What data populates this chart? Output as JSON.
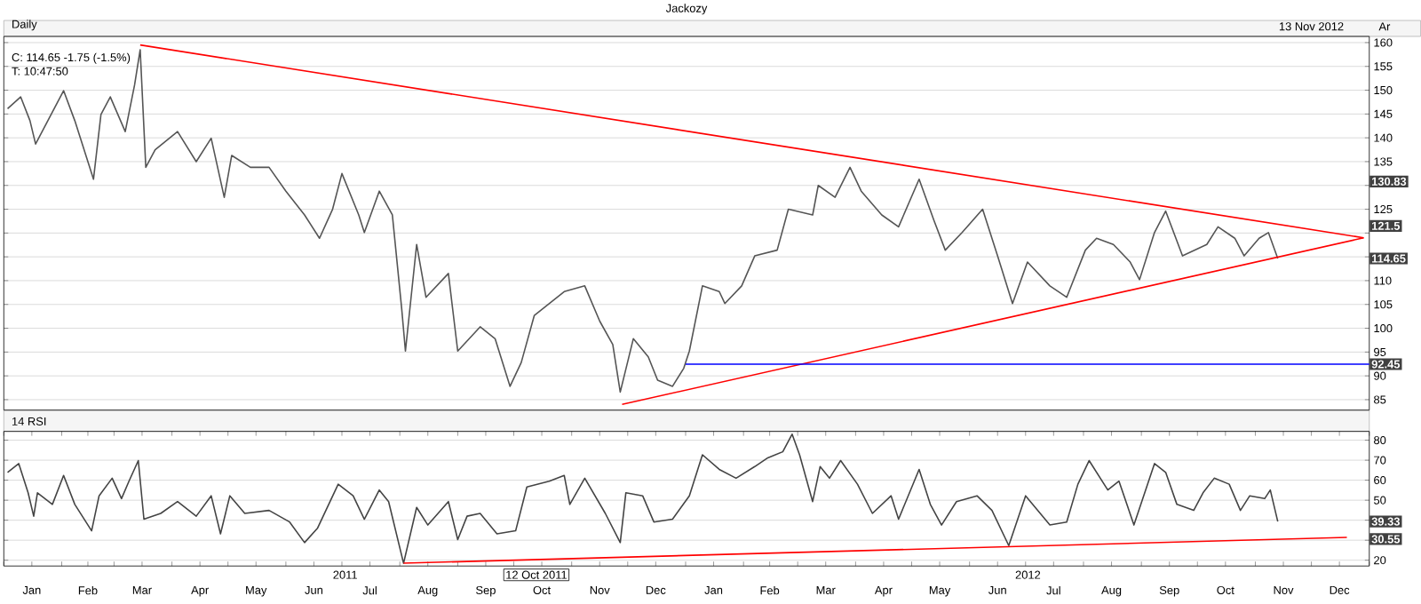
{
  "chart_data": [
    {
      "type": "line",
      "title": "Jackozy",
      "subtitle": "Daily",
      "xlim": [
        "2011-01-01",
        "2013-01-01"
      ],
      "ylim": [
        82.8,
        161.3
      ],
      "yticks": [
        85,
        90,
        95,
        100,
        105,
        110,
        {
          "value": 115,
          "label": null
        },
        {
          "value": 120,
          "label": null
        },
        125,
        {
          "value": 130,
          "label": null
        },
        135,
        140,
        145,
        150,
        155,
        160
      ],
      "grid": "y",
      "tick_labels": "y",
      "series": [
        {
          "color": "#555555",
          "x": [
            "2011-01-03",
            "2011-01-10",
            "2011-01-15",
            "2011-01-18",
            "2011-02-02",
            "2011-02-08",
            "2011-02-18",
            "2011-02-22",
            "2011-02-27",
            "2011-03-07",
            "2011-03-12",
            "2011-03-15",
            "2011-03-18",
            "2011-03-23",
            "2011-04-04",
            "2011-04-14",
            "2011-04-22",
            "2011-04-29",
            "2011-05-03",
            "2011-05-13",
            "2011-05-23",
            "2011-06-01",
            "2011-06-11",
            "2011-06-19",
            "2011-06-26",
            "2011-07-01",
            "2011-07-10",
            "2011-07-13",
            "2011-07-21",
            "2011-07-28",
            "2011-08-02",
            "2011-08-04",
            "2011-08-10",
            "2011-08-15",
            "2011-08-27",
            "2011-09-01",
            "2011-09-13",
            "2011-09-21",
            "2011-09-29",
            "2011-10-05",
            "2011-10-12",
            "2011-10-28",
            "2011-11-08",
            "2011-11-16",
            "2011-11-23",
            "2011-11-27",
            "2011-12-04",
            "2011-12-12",
            "2011-12-17",
            "2011-12-25",
            "2011-12-31",
            "2012-01-03",
            "2012-01-10",
            "2012-01-19",
            "2012-01-22",
            "2012-01-31",
            "2012-02-07",
            "2012-02-19",
            "2012-02-25",
            "2012-03-09",
            "2012-03-12",
            "2012-03-21",
            "2012-03-29",
            "2012-04-04",
            "2012-04-15",
            "2012-04-24",
            "2012-05-05",
            "2012-05-13",
            "2012-05-19",
            "2012-05-28",
            "2012-06-08",
            "2012-06-16",
            "2012-06-24",
            "2012-07-02",
            "2012-07-14",
            "2012-07-23",
            "2012-08-02",
            "2012-08-08",
            "2012-08-17",
            "2012-08-26",
            "2012-08-31",
            "2012-09-08",
            "2012-09-14",
            "2012-09-23",
            "2012-10-06",
            "2012-10-12",
            "2012-10-21",
            "2012-10-26",
            "2012-11-03",
            "2012-11-08",
            "2012-11-13"
          ],
          "values": [
            146.1,
            148.6,
            143.6,
            138.7,
            149.9,
            143.6,
            131.3,
            144.9,
            148.6,
            141.3,
            151.1,
            158.5,
            133.8,
            137.5,
            141.3,
            135,
            139.9,
            127.5,
            136.3,
            133.8,
            133.8,
            128.8,
            123.8,
            118.9,
            125,
            132.5,
            123.8,
            120.1,
            128.8,
            123.8,
            104.1,
            95.2,
            117.6,
            106.5,
            111.5,
            95.2,
            100.3,
            97.8,
            87.8,
            92.8,
            102.7,
            107.7,
            108.9,
            101.5,
            96.6,
            86.6,
            97.8,
            94,
            89.1,
            87.8,
            91.6,
            95.2,
            108.9,
            107.7,
            105.2,
            108.9,
            115.2,
            116.4,
            125,
            123.8,
            130,
            127.5,
            133.8,
            128.8,
            123.8,
            121.3,
            131.3,
            122.6,
            116.4,
            120.1,
            125,
            115.2,
            105.2,
            113.9,
            108.9,
            106.5,
            116.4,
            118.9,
            117.6,
            113.9,
            110.2,
            120.1,
            124.6,
            115.2,
            117.6,
            121.3,
            118.9,
            115.2,
            118.9,
            120.1,
            114.65
          ]
        },
        {
          "color": "#ff0000",
          "x": [
            "2011-03-15",
            "2012-12-29"
          ],
          "values": [
            159.5,
            119
          ]
        },
        {
          "color": "#ff0000",
          "x": [
            "2011-11-28",
            "2012-12-29"
          ],
          "values": [
            84,
            119
          ]
        },
        {
          "color": "#0000ff",
          "x": [
            "2012-01-01",
            "2013-01-01"
          ],
          "values": [
            92.45,
            92.45
          ]
        }
      ],
      "annotations": [
        "C: 114.65  -1.75 (-1.5%)",
        "T: 10:47:50",
        "13 Nov 2012",
        "Ar",
        {
          "text": "130.83",
          "y": 130.83
        },
        {
          "text": "121.5",
          "y": 121.5
        },
        {
          "text": "114.65",
          "y": 114.65
        },
        {
          "text": "92.45",
          "y": 92.45
        }
      ]
    },
    {
      "type": "line",
      "title": "14 RSI",
      "xlim": [
        "2011-01-01",
        "2013-01-01"
      ],
      "ylim": [
        17.1,
        84.4
      ],
      "yticks": [
        20,
        {
          "value": 30,
          "label": null
        },
        {
          "value": 40,
          "label": null
        },
        50,
        60,
        70,
        80
      ],
      "grid": "y",
      "xticks": [
        {
          "value": "2011-01-01",
          "label": null
        },
        {
          "value": "2011-01-16",
          "label": "Jan"
        },
        {
          "value": "2011-02-01",
          "label": null
        },
        {
          "value": "2011-02-15",
          "label": "Feb"
        },
        {
          "value": "2011-03-01",
          "label": null
        },
        {
          "value": "2011-03-16",
          "label": "Mar"
        },
        {
          "value": "2011-04-01",
          "label": null
        },
        {
          "value": "2011-04-16",
          "label": "Apr"
        },
        {
          "value": "2011-05-01",
          "label": null
        },
        {
          "value": "2011-05-16",
          "label": "May"
        },
        {
          "value": "2011-06-01",
          "label": null
        },
        {
          "value": "2011-06-16",
          "label": "Jun"
        },
        {
          "value": "2011-07-01",
          "label": null
        },
        {
          "value": "2011-07-16",
          "label": "Jul"
        },
        {
          "value": "2011-08-01",
          "label": null
        },
        {
          "value": "2011-08-16",
          "label": "Aug"
        },
        {
          "value": "2011-09-01",
          "label": null
        },
        {
          "value": "2011-09-16",
          "label": "Sep"
        },
        {
          "value": "2011-10-01",
          "label": null
        },
        {
          "value": "2011-10-16",
          "label": "Oct"
        },
        {
          "value": "2011-11-01",
          "label": null
        },
        {
          "value": "2011-11-16",
          "label": "Nov"
        },
        {
          "value": "2011-12-01",
          "label": null
        },
        {
          "value": "2011-12-16",
          "label": "Dec"
        },
        {
          "value": "2012-01-01",
          "label": null
        },
        {
          "value": "2012-01-16",
          "label": "Jan"
        },
        {
          "value": "2012-02-01",
          "label": null
        },
        {
          "value": "2012-02-15",
          "label": "Feb"
        },
        {
          "value": "2012-03-01",
          "label": null
        },
        {
          "value": "2012-03-16",
          "label": "Mar"
        },
        {
          "value": "2012-04-01",
          "label": null
        },
        {
          "value": "2012-04-16",
          "label": "Apr"
        },
        {
          "value": "2012-05-01",
          "label": null
        },
        {
          "value": "2012-05-16",
          "label": "May"
        },
        {
          "value": "2012-06-01",
          "label": null
        },
        {
          "value": "2012-06-16",
          "label": "Jun"
        },
        {
          "value": "2012-07-01",
          "label": null
        },
        {
          "value": "2012-07-16",
          "label": "Jul"
        },
        {
          "value": "2012-08-01",
          "label": null
        },
        {
          "value": "2012-08-16",
          "label": "Aug"
        },
        {
          "value": "2012-09-01",
          "label": null
        },
        {
          "value": "2012-09-16",
          "label": "Sep"
        },
        {
          "value": "2012-10-01",
          "label": null
        },
        {
          "value": "2012-10-16",
          "label": "Oct"
        },
        {
          "value": "2012-11-01",
          "label": null
        },
        {
          "value": "2012-11-16",
          "label": "Nov"
        },
        {
          "value": "2012-12-01",
          "label": null
        },
        {
          "value": "2012-12-16",
          "label": "Dec"
        },
        {
          "value": "2013-01-01",
          "label": null
        }
      ],
      "series": [
        {
          "color": "#444444",
          "x": [
            "2011-01-03",
            "2011-01-09",
            "2011-01-14",
            "2011-01-17",
            "2011-01-19",
            "2011-01-27",
            "2011-02-02",
            "2011-02-08",
            "2011-02-17",
            "2011-02-21",
            "2011-02-28",
            "2011-03-05",
            "2011-03-09",
            "2011-03-14",
            "2011-03-17",
            "2011-03-26",
            "2011-04-04",
            "2011-04-14",
            "2011-04-22",
            "2011-04-27",
            "2011-05-02",
            "2011-05-10",
            "2011-05-23",
            "2011-06-03",
            "2011-06-11",
            "2011-06-18",
            "2011-06-29",
            "2011-07-07",
            "2011-07-13",
            "2011-07-21",
            "2011-07-26",
            "2011-08-03",
            "2011-08-10",
            "2011-08-16",
            "2011-08-27",
            "2011-09-01",
            "2011-09-06",
            "2011-09-13",
            "2011-09-22",
            "2011-10-02",
            "2011-10-08",
            "2011-10-20",
            "2011-10-28",
            "2011-10-31",
            "2011-11-08",
            "2011-11-19",
            "2011-11-27",
            "2011-11-30",
            "2011-12-09",
            "2011-12-15",
            "2011-12-25",
            "2012-01-03",
            "2012-01-10",
            "2012-01-19",
            "2012-01-28",
            "2012-02-07",
            "2012-02-14",
            "2012-02-22",
            "2012-02-27",
            "2012-03-02",
            "2012-03-09",
            "2012-03-13",
            "2012-03-18",
            "2012-03-24",
            "2012-04-02",
            "2012-04-10",
            "2012-04-20",
            "2012-04-24",
            "2012-05-05",
            "2012-05-11",
            "2012-05-17",
            "2012-05-25",
            "2012-06-05",
            "2012-06-13",
            "2012-06-22",
            "2012-07-01",
            "2012-07-14",
            "2012-07-23",
            "2012-07-29",
            "2012-08-04",
            "2012-08-14",
            "2012-08-20",
            "2012-08-28",
            "2012-09-08",
            "2012-09-14",
            "2012-09-20",
            "2012-09-29",
            "2012-10-04",
            "2012-10-10",
            "2012-10-18",
            "2012-10-24",
            "2012-10-29",
            "2012-11-06",
            "2012-11-09",
            "2012-11-13"
          ],
          "values": [
            63.9,
            68.3,
            53.7,
            42,
            53.7,
            47.9,
            62.4,
            47.9,
            34.7,
            52.2,
            61,
            50.8,
            59.5,
            69.8,
            40.5,
            43.4,
            49.3,
            42,
            52.2,
            33.2,
            52.2,
            43.4,
            44.9,
            39.1,
            28.8,
            36.1,
            58,
            52.2,
            40.5,
            55.1,
            49.3,
            18.5,
            46.4,
            37.6,
            49.3,
            30.3,
            42,
            43.4,
            33.2,
            34.7,
            56.6,
            59.5,
            62.4,
            47.9,
            61,
            43.4,
            28.8,
            53.7,
            52.2,
            39.1,
            40.5,
            52.2,
            72.7,
            65.4,
            61,
            66.8,
            71.2,
            74.2,
            83,
            72.7,
            49.3,
            66.8,
            61,
            69.8,
            58,
            43.4,
            52.2,
            40.5,
            65.4,
            47.9,
            37.6,
            49.3,
            52.2,
            44.9,
            27.3,
            52.2,
            37.6,
            39.1,
            58,
            69.8,
            55.1,
            59.5,
            37.6,
            68.3,
            63.9,
            47.9,
            44.9,
            53.7,
            61,
            58,
            44.9,
            52.2,
            50.8,
            55.1,
            39.33
          ]
        },
        {
          "color": "#ff0000",
          "x": [
            "2011-08-03",
            "2012-12-20"
          ],
          "values": [
            18.5,
            31.4
          ]
        }
      ],
      "annotations": [
        "2011",
        "2012",
        "12 Oct 2011",
        {
          "text": "39.33",
          "y": 39.33
        },
        {
          "text": "30.55",
          "y": 30.55
        }
      ]
    }
  ]
}
